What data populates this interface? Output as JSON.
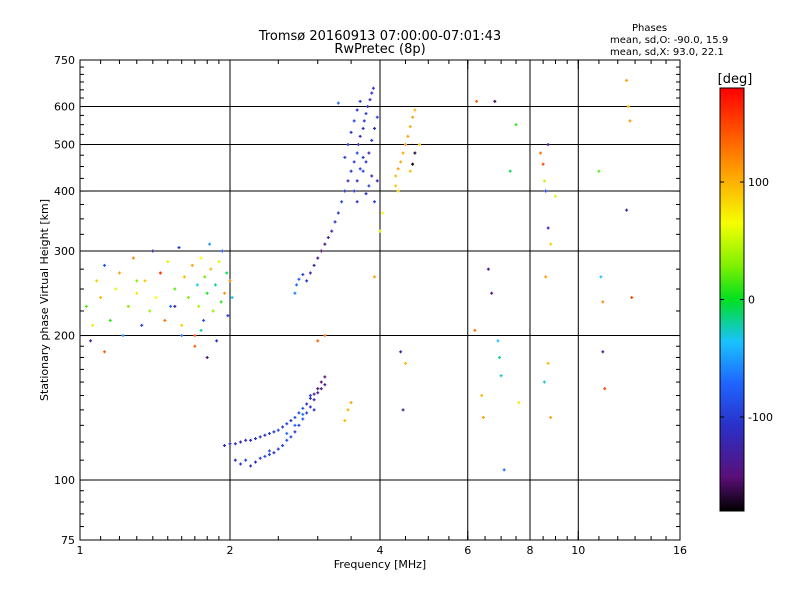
{
  "chart_data": {
    "type": "scatter",
    "title": "Tromsø 20160913 07:00:00-07:01:43",
    "subtitle": "RwPretec (8p)",
    "xlabel": "Frequency [MHz]",
    "ylabel": "Stationary phase Virtual Height [km]",
    "x_scale": "log",
    "y_scale": "log",
    "xlim": [
      1,
      16
    ],
    "ylim": [
      75,
      750
    ],
    "x_ticks": [
      1,
      2,
      4,
      6,
      8,
      10,
      16
    ],
    "x_tick_labels": [
      "1",
      "2",
      "4",
      "6",
      "8",
      "10",
      "16"
    ],
    "y_ticks": [
      75,
      100,
      200,
      300,
      400,
      500,
      600,
      750
    ],
    "y_tick_labels": [
      "75",
      "100",
      "200",
      "300",
      "400",
      "500",
      "600",
      "750"
    ],
    "grid": true,
    "vertical_grid_x": [
      2,
      4,
      6,
      8,
      10
    ],
    "horizontal_grid_y": [
      100,
      200,
      300,
      400,
      500,
      600
    ],
    "stats": {
      "title": "Phases",
      "line_o": "mean, sd,O:  -90.0,  15.9",
      "line_x": "mean, sd,X:   93.0,  22.1"
    },
    "colorbar": {
      "label": "[deg]",
      "range": [
        -180,
        180
      ],
      "ticks": [
        100,
        0,
        -100
      ],
      "tick_labels": [
        "100",
        "0",
        "-100"
      ]
    },
    "series": [
      {
        "points": [
          [
            1.03,
            230,
            20
          ],
          [
            1.05,
            195,
            -120
          ],
          [
            1.06,
            210,
            80
          ],
          [
            1.08,
            260,
            90
          ],
          [
            1.1,
            240,
            100
          ],
          [
            1.12,
            280,
            -90
          ],
          [
            1.12,
            185,
            140
          ],
          [
            1.15,
            215,
            10
          ],
          [
            1.18,
            250,
            60
          ],
          [
            1.2,
            270,
            110
          ],
          [
            1.22,
            200,
            -60
          ],
          [
            1.25,
            230,
            30
          ],
          [
            1.28,
            290,
            120
          ],
          [
            1.3,
            245,
            80
          ],
          [
            1.33,
            210,
            -100
          ],
          [
            1.35,
            260,
            95
          ],
          [
            1.38,
            225,
            40
          ],
          [
            1.4,
            300,
            -130
          ],
          [
            1.42,
            240,
            70
          ],
          [
            1.45,
            270,
            105
          ],
          [
            1.48,
            215,
            130
          ],
          [
            1.5,
            285,
            60
          ],
          [
            1.52,
            230,
            -80
          ],
          [
            1.55,
            250,
            20
          ],
          [
            1.58,
            305,
            -110
          ],
          [
            1.6,
            210,
            90
          ],
          [
            1.62,
            265,
            100
          ],
          [
            1.65,
            240,
            30
          ],
          [
            1.68,
            280,
            110
          ],
          [
            1.7,
            200,
            140
          ],
          [
            1.72,
            255,
            -40
          ],
          [
            1.73,
            230,
            45
          ],
          [
            1.75,
            290,
            70
          ],
          [
            1.77,
            215,
            -90
          ],
          [
            1.78,
            265,
            25
          ],
          [
            1.8,
            245,
            5
          ],
          [
            1.82,
            310,
            -60
          ],
          [
            1.83,
            275,
            100
          ],
          [
            1.85,
            225,
            35
          ],
          [
            1.87,
            255,
            -20
          ],
          [
            1.88,
            195,
            -110
          ],
          [
            1.9,
            285,
            60
          ],
          [
            1.92,
            235,
            10
          ],
          [
            1.93,
            300,
            -90
          ],
          [
            1.95,
            245,
            115
          ],
          [
            1.97,
            270,
            -5
          ],
          [
            1.98,
            220,
            -100
          ],
          [
            2.0,
            260,
            120
          ],
          [
            2.02,
            240,
            -40
          ],
          [
            1.55,
            230,
            -130
          ],
          [
            1.6,
            200,
            -70
          ],
          [
            1.7,
            190,
            140
          ],
          [
            1.75,
            205,
            -20
          ],
          [
            1.8,
            180,
            -150
          ],
          [
            1.45,
            270,
            160
          ],
          [
            1.3,
            260,
            30
          ],
          [
            2.05,
            110,
            -110
          ],
          [
            2.1,
            108,
            -105
          ],
          [
            2.15,
            110,
            -100
          ],
          [
            2.2,
            107,
            -110
          ],
          [
            2.25,
            109,
            -120
          ],
          [
            2.3,
            111,
            -100
          ],
          [
            2.35,
            112,
            -95
          ],
          [
            2.4,
            113,
            -100
          ],
          [
            2.45,
            114,
            -110
          ],
          [
            2.5,
            116,
            -105
          ],
          [
            2.55,
            118,
            -100
          ],
          [
            2.6,
            121,
            -95
          ],
          [
            2.65,
            123,
            -100
          ],
          [
            2.7,
            126,
            -110
          ],
          [
            2.75,
            130,
            -100
          ],
          [
            2.8,
            134,
            -90
          ],
          [
            2.85,
            138,
            -100
          ],
          [
            2.9,
            142,
            -110
          ],
          [
            2.95,
            147,
            -120
          ],
          [
            3.0,
            152,
            -130
          ],
          [
            3.05,
            155,
            -140
          ],
          [
            3.1,
            158,
            -135
          ],
          [
            1.95,
            118,
            -120
          ],
          [
            2.0,
            119,
            -115
          ],
          [
            2.05,
            119,
            -110
          ],
          [
            2.1,
            120,
            -118
          ],
          [
            2.15,
            121,
            -112
          ],
          [
            2.2,
            121,
            -120
          ],
          [
            2.25,
            122,
            -110
          ],
          [
            2.3,
            123,
            -105
          ],
          [
            2.35,
            124,
            -115
          ],
          [
            2.4,
            125,
            -100
          ],
          [
            2.45,
            126,
            -110
          ],
          [
            2.5,
            127,
            -95
          ],
          [
            2.55,
            129,
            -105
          ],
          [
            2.6,
            131,
            -100
          ],
          [
            2.65,
            133,
            -110
          ],
          [
            2.7,
            135,
            -95
          ],
          [
            2.75,
            138,
            -100
          ],
          [
            2.8,
            141,
            -90
          ],
          [
            2.85,
            144,
            -110
          ],
          [
            2.9,
            148,
            -120
          ],
          [
            2.95,
            151,
            -130
          ],
          [
            3.0,
            155,
            -140
          ],
          [
            3.05,
            160,
            -150
          ],
          [
            3.1,
            164,
            -145
          ],
          [
            2.4,
            115,
            -90
          ],
          [
            2.6,
            125,
            -80
          ],
          [
            2.7,
            130,
            -85
          ],
          [
            2.8,
            137,
            -75
          ],
          [
            2.9,
            150,
            -100
          ],
          [
            2.95,
            140,
            -110
          ],
          [
            3.4,
            133,
            100
          ],
          [
            3.45,
            140,
            105
          ],
          [
            3.5,
            145,
            110
          ],
          [
            3.0,
            195,
            140
          ],
          [
            3.1,
            200,
            130
          ],
          [
            2.7,
            245,
            -75
          ],
          [
            2.72,
            255,
            -80
          ],
          [
            2.75,
            262,
            -90
          ],
          [
            2.8,
            268,
            -100
          ],
          [
            2.85,
            260,
            -110
          ],
          [
            2.9,
            270,
            -120
          ],
          [
            2.95,
            280,
            -130
          ],
          [
            3.0,
            290,
            -140
          ],
          [
            3.05,
            300,
            -150
          ],
          [
            3.1,
            310,
            -145
          ],
          [
            3.15,
            320,
            -130
          ],
          [
            3.2,
            330,
            -120
          ],
          [
            3.25,
            345,
            -110
          ],
          [
            3.3,
            360,
            -105
          ],
          [
            3.35,
            380,
            -100
          ],
          [
            3.4,
            400,
            -110
          ],
          [
            3.45,
            420,
            -115
          ],
          [
            3.5,
            440,
            -110
          ],
          [
            3.55,
            460,
            -105
          ],
          [
            3.6,
            480,
            -100
          ],
          [
            3.62,
            500,
            -110
          ],
          [
            3.65,
            520,
            -115
          ],
          [
            3.7,
            540,
            -110
          ],
          [
            3.72,
            560,
            -105
          ],
          [
            3.75,
            580,
            -100
          ],
          [
            3.78,
            600,
            -110
          ],
          [
            3.82,
            620,
            -115
          ],
          [
            3.85,
            640,
            -110
          ],
          [
            3.88,
            655,
            -105
          ],
          [
            3.4,
            470,
            -100
          ],
          [
            3.45,
            500,
            -105
          ],
          [
            3.5,
            530,
            -110
          ],
          [
            3.55,
            560,
            -100
          ],
          [
            3.6,
            590,
            -110
          ],
          [
            3.65,
            615,
            -105
          ],
          [
            3.7,
            440,
            -100
          ],
          [
            3.75,
            460,
            -110
          ],
          [
            3.8,
            480,
            -115
          ],
          [
            3.85,
            510,
            -105
          ],
          [
            3.9,
            540,
            -110
          ],
          [
            3.95,
            570,
            -100
          ],
          [
            3.6,
            420,
            -110
          ],
          [
            3.65,
            445,
            -100
          ],
          [
            3.7,
            470,
            -105
          ],
          [
            3.75,
            395,
            -110
          ],
          [
            3.8,
            410,
            -100
          ],
          [
            3.85,
            430,
            -115
          ],
          [
            3.55,
            400,
            -105
          ],
          [
            3.6,
            380,
            -110
          ],
          [
            3.9,
            380,
            -100
          ],
          [
            3.3,
            610,
            -80
          ],
          [
            3.95,
            420,
            -120
          ],
          [
            4.3,
            430,
            100
          ],
          [
            4.35,
            445,
            110
          ],
          [
            4.4,
            460,
            105
          ],
          [
            4.45,
            480,
            110
          ],
          [
            4.5,
            500,
            115
          ],
          [
            4.55,
            520,
            110
          ],
          [
            4.6,
            545,
            105
          ],
          [
            4.65,
            570,
            110
          ],
          [
            4.7,
            590,
            100
          ],
          [
            4.3,
            410,
            95
          ],
          [
            4.35,
            400,
            90
          ],
          [
            4.6,
            440,
            100
          ],
          [
            4.65,
            455,
            -180
          ],
          [
            4.7,
            480,
            -170
          ],
          [
            4.8,
            500,
            95
          ],
          [
            3.9,
            265,
            110
          ],
          [
            4.0,
            330,
            60
          ],
          [
            4.05,
            360,
            70
          ],
          [
            6.2,
            205,
            130
          ],
          [
            6.25,
            615,
            140
          ],
          [
            6.4,
            150,
            100
          ],
          [
            6.45,
            135,
            110
          ],
          [
            6.6,
            275,
            -140
          ],
          [
            6.7,
            245,
            -150
          ],
          [
            6.8,
            615,
            -160
          ],
          [
            6.9,
            195,
            -40
          ],
          [
            6.95,
            180,
            -20
          ],
          [
            7.0,
            165,
            -30
          ],
          [
            7.1,
            105,
            -80
          ],
          [
            7.3,
            440,
            -10
          ],
          [
            7.5,
            550,
            10
          ],
          [
            7.6,
            145,
            80
          ],
          [
            8.4,
            480,
            130
          ],
          [
            8.5,
            455,
            150
          ],
          [
            8.55,
            420,
            50
          ],
          [
            8.6,
            400,
            -100
          ],
          [
            8.6,
            265,
            110
          ],
          [
            8.7,
            500,
            -140
          ],
          [
            8.7,
            335,
            -120
          ],
          [
            8.7,
            175,
            100
          ],
          [
            8.8,
            135,
            110
          ],
          [
            8.8,
            310,
            90
          ],
          [
            8.55,
            160,
            -30
          ],
          [
            9.0,
            390,
            60
          ],
          [
            11.0,
            440,
            20
          ],
          [
            11.1,
            265,
            -40
          ],
          [
            11.2,
            235,
            120
          ],
          [
            11.2,
            185,
            -140
          ],
          [
            11.3,
            155,
            150
          ],
          [
            12.5,
            680,
            110
          ],
          [
            12.6,
            600,
            100
          ],
          [
            12.7,
            560,
            115
          ],
          [
            12.5,
            365,
            -130
          ],
          [
            12.8,
            240,
            150
          ],
          [
            4.4,
            185,
            -120
          ],
          [
            4.5,
            175,
            100
          ],
          [
            4.45,
            140,
            -130
          ]
        ]
      }
    ]
  }
}
